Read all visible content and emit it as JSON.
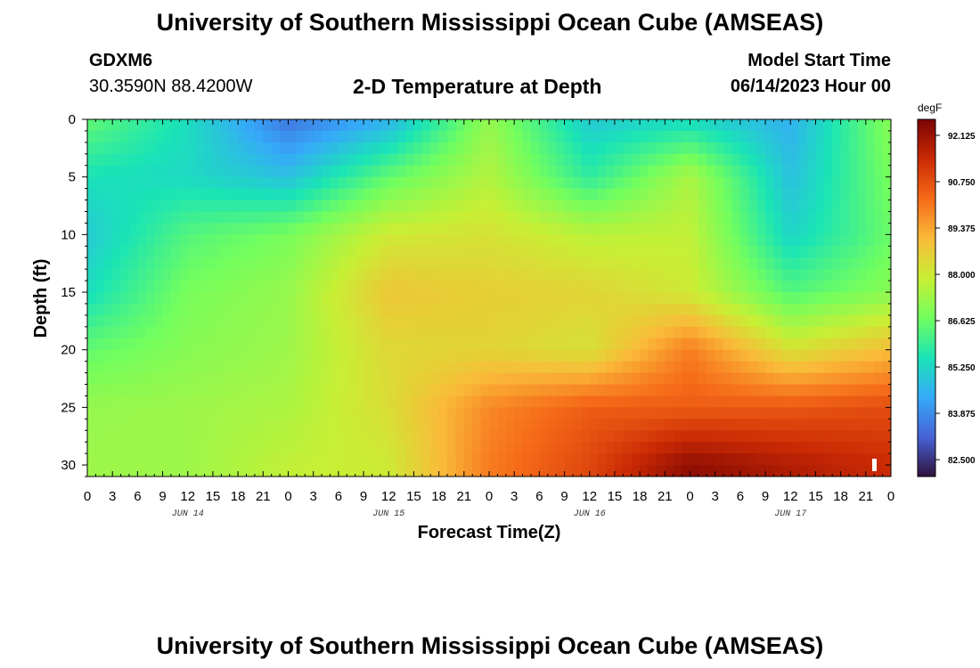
{
  "header": {
    "title": "University of Southern Mississippi Ocean Cube (AMSEAS)",
    "station": "GDXM6",
    "coords": "30.3590N  88.4200W",
    "subtitle": "2-D Temperature at Depth",
    "model_start_label": "Model Start Time",
    "model_start_value": "06/14/2023 Hour 00"
  },
  "footer": {
    "title": "University of Southern Mississippi Ocean Cube (AMSEAS)"
  },
  "chart_data": {
    "type": "heatmap",
    "title": "2-D Temperature at Depth",
    "xlabel": "Forecast Time(Z)",
    "ylabel": "Depth (ft)",
    "x_hours": [
      0,
      12,
      24,
      36,
      48,
      60,
      72,
      84,
      96
    ],
    "x_range_hours": [
      0,
      96
    ],
    "y_range_ft": [
      0,
      31
    ],
    "x_tick_labels": [
      "0",
      "3",
      "6",
      "9",
      "12",
      "15",
      "18",
      "21",
      "0",
      "3",
      "6",
      "9",
      "12",
      "15",
      "18",
      "21",
      "0",
      "3",
      "6",
      "9",
      "12",
      "15",
      "18",
      "21",
      "0",
      "3",
      "6",
      "9",
      "12",
      "15",
      "18",
      "21",
      "0"
    ],
    "date_labels": [
      {
        "label": "JUN 14",
        "hour": 12
      },
      {
        "label": "JUN 15",
        "hour": 36
      },
      {
        "label": "JUN 16",
        "hour": 60
      },
      {
        "label": "JUN 17",
        "hour": 84
      }
    ],
    "y_ticks": [
      0,
      5,
      10,
      15,
      20,
      25,
      30
    ],
    "colorbar": {
      "unit": "degF",
      "min": 82.0,
      "max": 92.6,
      "ticks": [
        "92.125",
        "90.750",
        "89.375",
        "88.000",
        "86.625",
        "85.250",
        "83.875",
        "82.500"
      ],
      "colors": [
        "#30123b",
        "#4662d7",
        "#36aaf9",
        "#1ae4b6",
        "#72fe5e",
        "#c8ef34",
        "#faba39",
        "#f66b19",
        "#ca2a04",
        "#7a0403"
      ]
    },
    "grid": false,
    "legend": "right",
    "depths_ft": [
      0,
      5,
      10,
      15,
      20,
      25,
      30
    ],
    "values": [
      [
        86.5,
        85.4,
        83.5,
        84.5,
        87.2,
        85.0,
        85.3,
        84.5,
        87.0
      ],
      [
        85.5,
        85.3,
        84.8,
        86.5,
        87.6,
        85.8,
        87.5,
        84.8,
        86.8
      ],
      [
        85.0,
        86.3,
        86.8,
        88.0,
        88.2,
        87.7,
        87.8,
        85.2,
        86.6
      ],
      [
        85.4,
        86.8,
        87.2,
        88.8,
        88.6,
        88.5,
        88.0,
        86.3,
        87.0
      ],
      [
        86.5,
        87.0,
        87.3,
        88.4,
        88.5,
        88.2,
        90.0,
        88.2,
        89.0
      ],
      [
        87.2,
        87.3,
        87.5,
        88.3,
        89.8,
        90.5,
        90.5,
        90.6,
        90.8
      ],
      [
        87.3,
        87.3,
        87.8,
        88.0,
        90.0,
        90.9,
        92.3,
        91.8,
        91.4
      ]
    ]
  }
}
